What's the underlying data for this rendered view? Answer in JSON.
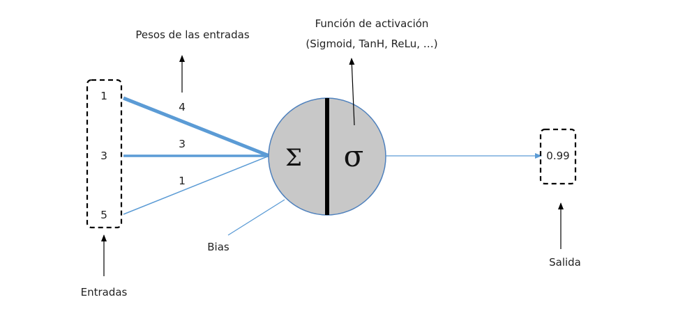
{
  "inputs": {
    "values": [
      "1",
      "3",
      "5"
    ],
    "caption": "Entradas"
  },
  "weights": {
    "values": [
      "4",
      "3",
      "1"
    ],
    "caption": "Pesos de las entradas"
  },
  "neuron": {
    "sum_symbol": "Σ",
    "activation_symbol": "σ",
    "fill_color": "#c8c8c8",
    "stroke_color": "#4f81bd"
  },
  "activation": {
    "caption_line1": "Función de activación",
    "caption_line2": "(Sigmoid, TanH, ReLu, …)"
  },
  "bias": {
    "caption": "Bias"
  },
  "output": {
    "value": "0.99",
    "caption": "Salida"
  },
  "colors": {
    "connection": "#5b9bd5"
  }
}
